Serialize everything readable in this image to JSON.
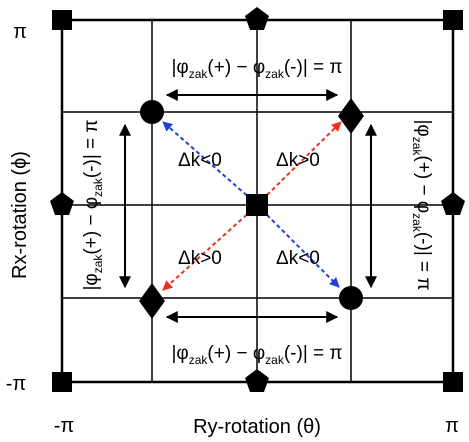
{
  "axes": {
    "x_label": "Ry-rotation (θ)",
    "y_label": "Rx-rotation (ϕ)",
    "x_min": "-π",
    "x_max": "π",
    "y_min": "-π",
    "y_max": "π"
  },
  "phase": {
    "phi": "φ",
    "sub": "zak",
    "plus": "(+) − ",
    "minus": "(-)",
    "equals": " = π"
  },
  "delta": {
    "top_left": "Δk<0",
    "top_right": "Δk>0",
    "bottom_left": "Δk>0",
    "bottom_right": "Δk<0"
  },
  "colors": {
    "line": "#000000",
    "red_arrow": "#e8321e",
    "blue_arrow": "#1f3fd8"
  }
}
